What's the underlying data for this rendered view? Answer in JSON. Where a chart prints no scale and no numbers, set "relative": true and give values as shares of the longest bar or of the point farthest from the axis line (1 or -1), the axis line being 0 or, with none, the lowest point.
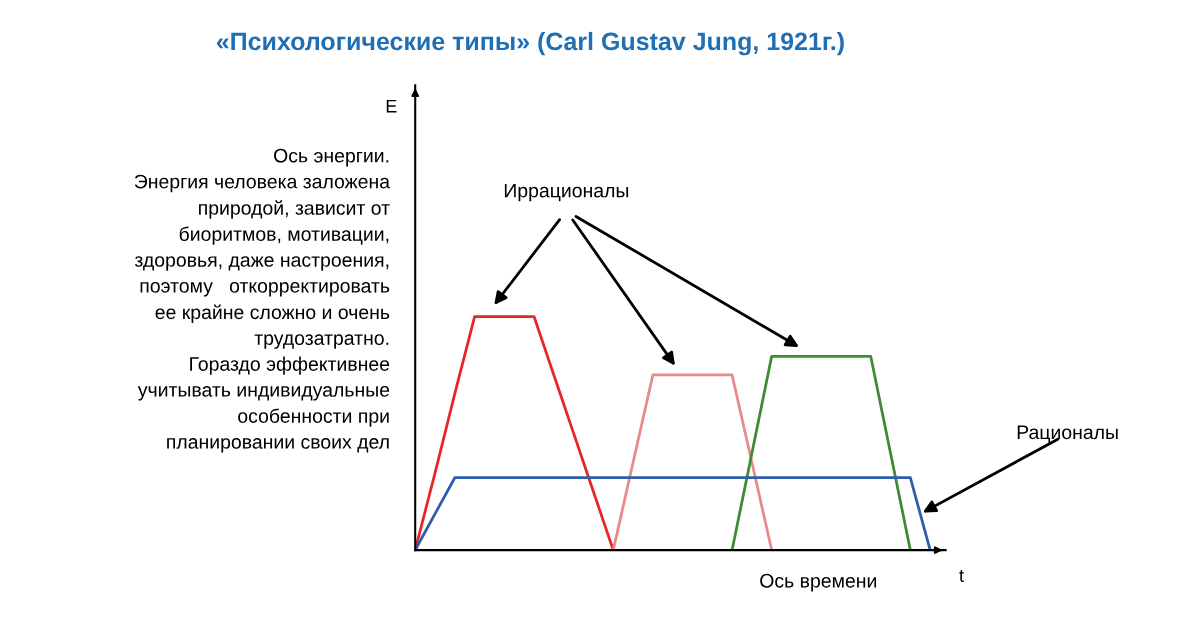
{
  "chart_data": {
    "type": "line",
    "relative": true,
    "title": "«Психологические типы» (Carl Gustav Jung, 1921г.)",
    "xlabel": "t",
    "marker": "none",
    "line_style": "solid",
    "annotations": [
      "Ось энергии.\nЭнергия человека заложена\nприродой, зависит от\nбиоритмов, мотивации,\nздоровья, даже настроения,\nпоэтому   откорректировать\nее крайне сложно и очень\nтрудозатратно.\nГораздо эффективнее\nучитывать индивидуальные\nособенности при\nпланировании своих дел",
      "Ось времени",
      "E",
      "Иррационалы"
    ],
    "categories": [
      null,
      null,
      null,
      null,
      null,
      null,
      null,
      null,
      null,
      null,
      null,
      null,
      null,
      null,
      null,
      null,
      null,
      null,
      null,
      null,
      null,
      null,
      null,
      null,
      null,
      null,
      null
    ],
    "series": [
      {
        "color": "#e8262a",
        "values": [
          0,
          0.33,
          0.67,
          1,
          1,
          1,
          1,
          0.75,
          0.5,
          0.25,
          0,
          null,
          null,
          null,
          null,
          null,
          null,
          null,
          null,
          null,
          null,
          null,
          null,
          null,
          null,
          null,
          null
        ]
      },
      {
        "color": "#e88a8a",
        "values": [
          null,
          null,
          null,
          null,
          null,
          null,
          null,
          null,
          null,
          null,
          0,
          0.375,
          0.75,
          0.75,
          0.75,
          0.75,
          0.75,
          0.375,
          0,
          null,
          null,
          null,
          null,
          null,
          null,
          null,
          null
        ]
      },
      {
        "color": "#3f8a35",
        "values": [
          null,
          null,
          null,
          null,
          null,
          null,
          null,
          null,
          null,
          null,
          null,
          null,
          null,
          null,
          null,
          null,
          0,
          0.415,
          0.83,
          0.83,
          0.83,
          0.83,
          0.83,
          0.83,
          0.415,
          0,
          null
        ]
      },
      {
        "name": "Рационалы",
        "color": "#2e5ea8",
        "values": [
          0,
          0.155,
          0.31,
          0.31,
          0.31,
          0.31,
          0.31,
          0.31,
          0.31,
          0.31,
          0.31,
          0.31,
          0.31,
          0.31,
          0.31,
          0.31,
          0.31,
          0.31,
          0.31,
          0.31,
          0.31,
          0.31,
          0.31,
          0.31,
          0.31,
          0.31,
          0
        ]
      }
    ]
  }
}
